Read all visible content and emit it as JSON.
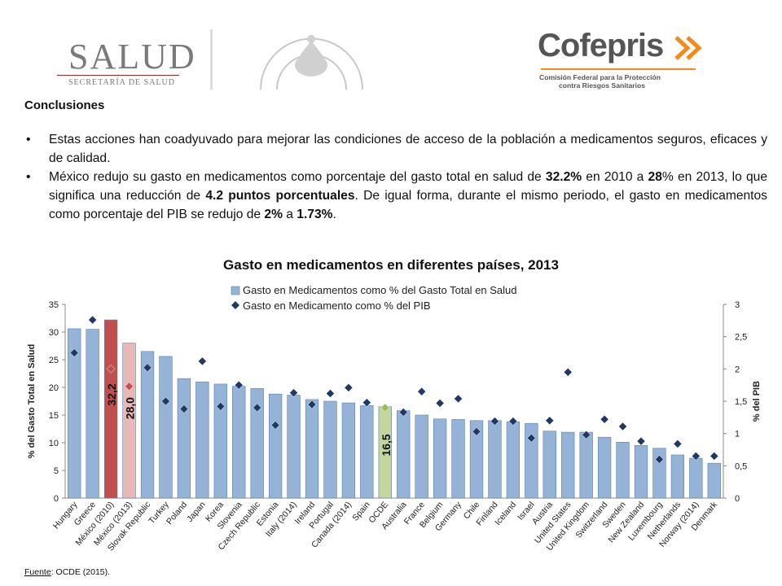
{
  "header": {
    "salud_logo_text": "SALUD",
    "salud_logo_subtext": "SECRETARÍA DE SALUD",
    "cofepris_logo_text": "Cofepris",
    "cofepris_line1": "Comisión Federal para la Protección",
    "cofepris_line2": "contra Riesgos Sanitarios",
    "seal_icon": "mexican-coat-of-arms-seal"
  },
  "section_title": "Conclusiones",
  "bullets": [
    {
      "text": "Estas acciones han coadyuvado para mejorar las condiciones de acceso de la población a medicamentos seguros, eficaces y de calidad."
    },
    {
      "parts": [
        {
          "t": "México redujo su gasto en medicamentos como porcentaje del gasto total en salud de ",
          "b": false
        },
        {
          "t": "32.2%",
          "b": true
        },
        {
          "t": " en 2010 a ",
          "b": false
        },
        {
          "t": "28",
          "b": true
        },
        {
          "t": "% en 2013, lo que significa una reducción de ",
          "b": false
        },
        {
          "t": "4.2 puntos porcentuales",
          "b": true
        },
        {
          "t": ". De igual forma, durante el mismo periodo, el gasto en medicamentos como porcentaje del PIB se redujo de ",
          "b": false
        },
        {
          "t": "2%",
          "b": true
        },
        {
          "t": " a ",
          "b": false
        },
        {
          "t": "1.73%",
          "b": true
        },
        {
          "t": ".",
          "b": false
        }
      ]
    }
  ],
  "chart_data": {
    "type": "bar",
    "title": "Gasto en medicamentos en diferentes países, 2013",
    "ylabel": "% del Gasto Total en Salud",
    "y2label": "% del PIB",
    "ylim": [
      0,
      35
    ],
    "y2lim": [
      0,
      3
    ],
    "yticks": [
      "0",
      "5",
      "10",
      "15",
      "20",
      "25",
      "30",
      "35"
    ],
    "y2ticks": [
      "0",
      "0,5",
      "1",
      "1,5",
      "2",
      "2,5",
      "3"
    ],
    "legend_position": "top",
    "categories": [
      "Hungary",
      "Greece",
      "México (2010)",
      "México (2013)",
      "Slovak Republic",
      "Turkey",
      "Poland",
      "Japan",
      "Korea",
      "Slovenia",
      "Czech Republic",
      "Estonia",
      "Italy (2014)",
      "Ireland",
      "Portugal",
      "Canada (2014)",
      "Spain",
      "OCDE",
      "Australia",
      "France",
      "Belgium",
      "Germany",
      "Chile",
      "Finland",
      "Iceland",
      "Israel",
      "Austria",
      "United States",
      "United Kingdom",
      "Switzerland",
      "Sweden",
      "New Zealand",
      "Luxembourg",
      "Netherlands",
      "Norway (2014)",
      "Denmark"
    ],
    "series": [
      {
        "name": "Gasto en Medicamentos  como % del Gasto Total en Salud",
        "type": "bar",
        "values": [
          30.6,
          30.5,
          32.2,
          28.0,
          26.5,
          25.6,
          21.6,
          21.0,
          20.6,
          20.2,
          19.8,
          18.8,
          18.6,
          17.8,
          17.5,
          17.2,
          16.7,
          16.5,
          15.8,
          15.0,
          14.3,
          14.2,
          14.0,
          14.0,
          13.8,
          13.5,
          12.1,
          11.9,
          11.9,
          11.0,
          10.1,
          9.5,
          9.0,
          7.8,
          7.2,
          6.3
        ],
        "colors": {
          "default": "#95b3d7",
          "highlight_mexico_2010": "#c0504d",
          "highlight_mexico_2013": "#e6b9b8",
          "highlight_ocde": "#c3d69b"
        }
      },
      {
        "name": "Gasto en Medicamento como % del PIB",
        "type": "scatter",
        "axis": "y2",
        "values": [
          2.25,
          2.76,
          2.0,
          1.73,
          2.02,
          1.5,
          1.38,
          2.12,
          1.42,
          1.75,
          1.4,
          1.13,
          1.63,
          1.45,
          1.62,
          1.71,
          1.48,
          1.4,
          1.33,
          1.65,
          1.47,
          1.54,
          1.03,
          1.19,
          1.19,
          0.93,
          1.2,
          1.95,
          0.98,
          1.22,
          1.11,
          0.88,
          0.6,
          0.84,
          0.65,
          0.65
        ],
        "colors": {
          "default": "#1f3864",
          "highlight_mexico": "#c0504d",
          "highlight_ocde": "#9bbb59"
        }
      }
    ],
    "data_labels": [
      {
        "category": "México (2010)",
        "text": "32,2"
      },
      {
        "category": "México (2013)",
        "text": "28,0"
      },
      {
        "category": "OCDE",
        "text": "16,5"
      }
    ]
  },
  "source": {
    "label": "Fuente",
    "text": ": OCDE (2015)."
  }
}
